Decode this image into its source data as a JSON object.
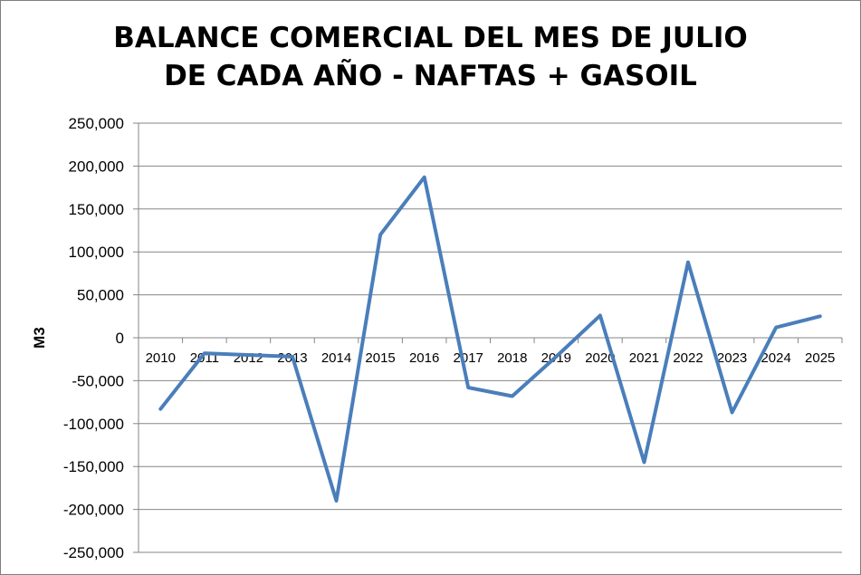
{
  "chart_data": {
    "type": "line",
    "title": [
      "BALANCE COMERCIAL DEL MES DE JULIO",
      "DE CADA AÑO - NAFTAS + GASOIL"
    ],
    "xlabel": "",
    "ylabel": "M3",
    "categories": [
      "2010",
      "2011",
      "2012",
      "2013",
      "2014",
      "2015",
      "2016",
      "2017",
      "2018",
      "2019",
      "2020",
      "2021",
      "2022",
      "2023",
      "2024",
      "2025"
    ],
    "series": [
      {
        "values": [
          -83000,
          -18000,
          -20000,
          -22000,
          -190000,
          120000,
          187000,
          -58000,
          -68000,
          -22000,
          26000,
          -145000,
          88000,
          -87000,
          12000,
          25000
        ],
        "color": "#4a7ebb"
      }
    ],
    "ylim": [
      -250000,
      250000
    ],
    "yticks": [
      {
        "value": 250000,
        "label": "250,000"
      },
      {
        "value": 200000,
        "label": "200,000"
      },
      {
        "value": 150000,
        "label": "150,000"
      },
      {
        "value": 100000,
        "label": "100,000"
      },
      {
        "value": 50000,
        "label": "50,000"
      },
      {
        "value": 0,
        "label": "0"
      },
      {
        "value": -50000,
        "label": "-50,000"
      },
      {
        "value": -100000,
        "label": "-100,000"
      },
      {
        "value": -150000,
        "label": "-150,000"
      },
      {
        "value": -200000,
        "label": "-200,000"
      },
      {
        "value": -250000,
        "label": "-250,000"
      }
    ],
    "grid": true,
    "legend": "none",
    "gridline_color": "#868686"
  }
}
